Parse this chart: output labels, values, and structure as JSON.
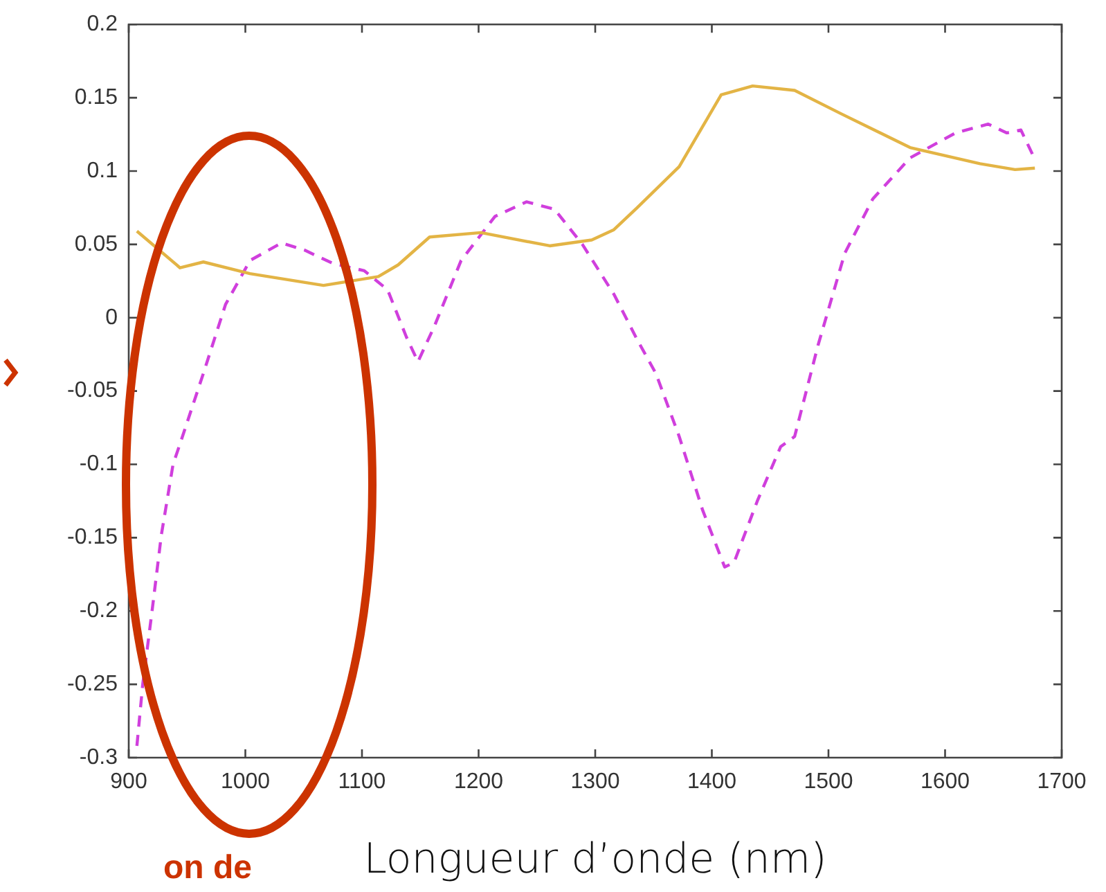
{
  "chart_data": {
    "type": "line",
    "xlabel": "Longueur d’onde (nm)",
    "xlim": [
      900,
      1700
    ],
    "xticks": [
      900,
      1000,
      1100,
      1200,
      1300,
      1400,
      1500,
      1600,
      1700
    ],
    "ylim": [
      -0.3,
      0.2
    ],
    "yticks": [
      -0.3,
      -0.25,
      -0.2,
      -0.15,
      -0.1,
      -0.05,
      0,
      0.05,
      0.1,
      0.15,
      0.2
    ],
    "grid": false,
    "legend": false,
    "annotations": [
      "on de"
    ],
    "series": [
      {
        "color": "#e3b445",
        "line_style": "solid",
        "x": [
          907,
          944,
          964,
          1004,
          1067,
          1114,
          1131,
          1158,
          1202,
          1261,
          1297,
          1316,
          1336,
          1372,
          1408,
          1435,
          1471,
          1511,
          1570,
          1630,
          1660,
          1677
        ],
        "values": [
          0.059,
          0.034,
          0.038,
          0.03,
          0.022,
          0.028,
          0.036,
          0.055,
          0.058,
          0.049,
          0.053,
          0.06,
          0.075,
          0.103,
          0.152,
          0.158,
          0.155,
          0.139,
          0.116,
          0.105,
          0.101,
          0.102
        ]
      },
      {
        "color": "#d03fdd",
        "line_style": "dashed",
        "x": [
          907,
          912,
          920,
          928,
          938,
          944,
          964,
          983,
          1004,
          1031,
          1051,
          1075,
          1102,
          1122,
          1138,
          1148,
          1162,
          1185,
          1214,
          1241,
          1265,
          1289,
          1316,
          1336,
          1352,
          1372,
          1392,
          1411,
          1419,
          1439,
          1459,
          1471,
          1491,
          1514,
          1538,
          1570,
          1609,
          1637,
          1653,
          1665,
          1677
        ],
        "values": [
          -0.292,
          -0.25,
          -0.2,
          -0.148,
          -0.1,
          -0.086,
          -0.038,
          0.009,
          0.039,
          0.051,
          0.046,
          0.037,
          0.032,
          0.019,
          -0.013,
          -0.03,
          -0.006,
          0.039,
          0.069,
          0.079,
          0.074,
          0.05,
          0.016,
          -0.015,
          -0.038,
          -0.081,
          -0.131,
          -0.17,
          -0.167,
          -0.125,
          -0.088,
          -0.081,
          -0.019,
          0.044,
          0.081,
          0.109,
          0.126,
          0.132,
          0.126,
          0.128,
          0.108
        ]
      }
    ]
  }
}
